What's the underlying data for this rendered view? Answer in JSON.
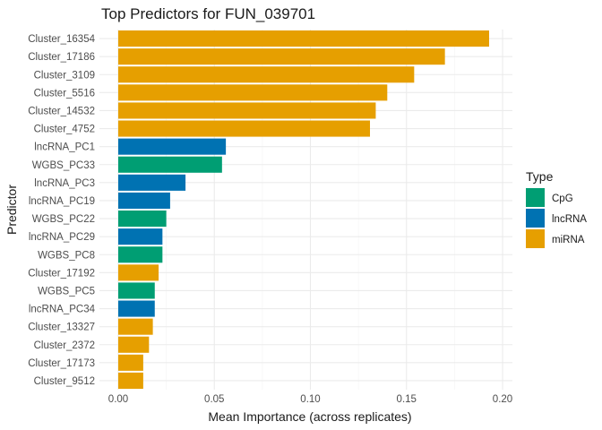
{
  "chart_data": {
    "type": "bar",
    "orientation": "horizontal",
    "title": "Top Predictors for FUN_039701",
    "xlabel": "Mean Importance (across replicates)",
    "ylabel": "Predictor",
    "xlim": [
      0,
      0.2
    ],
    "x_ticks": [
      0,
      0.05,
      0.1,
      0.15,
      0.2
    ],
    "x_tick_labels": [
      "0.00",
      "0.05",
      "0.10",
      "0.15",
      "0.20"
    ],
    "grid": true,
    "legend": {
      "title": "Type",
      "position": "right",
      "entries": [
        {
          "label": "CpG",
          "color": "#009E73"
        },
        {
          "label": "lncRNA",
          "color": "#0072B2"
        },
        {
          "label": "miRNA",
          "color": "#E69F00"
        }
      ]
    },
    "bars": [
      {
        "category": "Cluster_16354",
        "value": 0.193,
        "type": "miRNA"
      },
      {
        "category": "Cluster_17186",
        "value": 0.17,
        "type": "miRNA"
      },
      {
        "category": "Cluster_3109",
        "value": 0.154,
        "type": "miRNA"
      },
      {
        "category": "Cluster_5516",
        "value": 0.14,
        "type": "miRNA"
      },
      {
        "category": "Cluster_14532",
        "value": 0.134,
        "type": "miRNA"
      },
      {
        "category": "Cluster_4752",
        "value": 0.131,
        "type": "miRNA"
      },
      {
        "category": "lncRNA_PC1",
        "value": 0.056,
        "type": "lncRNA"
      },
      {
        "category": "WGBS_PC33",
        "value": 0.054,
        "type": "CpG"
      },
      {
        "category": "lncRNA_PC3",
        "value": 0.035,
        "type": "lncRNA"
      },
      {
        "category": "lncRNA_PC19",
        "value": 0.027,
        "type": "lncRNA"
      },
      {
        "category": "WGBS_PC22",
        "value": 0.025,
        "type": "CpG"
      },
      {
        "category": "lncRNA_PC29",
        "value": 0.023,
        "type": "lncRNA"
      },
      {
        "category": "WGBS_PC8",
        "value": 0.023,
        "type": "CpG"
      },
      {
        "category": "Cluster_17192",
        "value": 0.021,
        "type": "miRNA"
      },
      {
        "category": "WGBS_PC5",
        "value": 0.019,
        "type": "CpG"
      },
      {
        "category": "lncRNA_PC34",
        "value": 0.019,
        "type": "lncRNA"
      },
      {
        "category": "Cluster_13327",
        "value": 0.018,
        "type": "miRNA"
      },
      {
        "category": "Cluster_2372",
        "value": 0.016,
        "type": "miRNA"
      },
      {
        "category": "Cluster_17173",
        "value": 0.013,
        "type": "miRNA"
      },
      {
        "category": "Cluster_9512",
        "value": 0.013,
        "type": "miRNA"
      }
    ]
  }
}
